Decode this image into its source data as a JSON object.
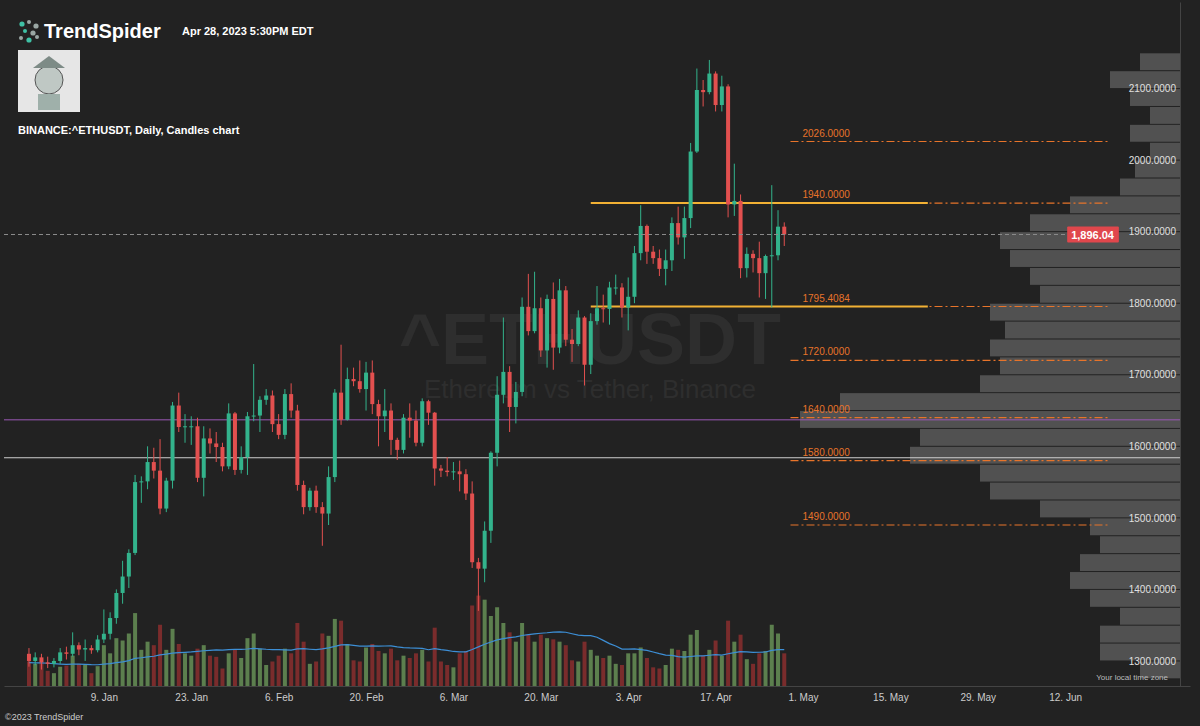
{
  "page": {
    "brand": "TrendSpider",
    "timestamp": "Apr 28, 2023 5:30PM EDT",
    "watermark": "^ETHUSDT",
    "watermark_subtitle": "Ethereum vs Tether, Binance",
    "copyright": "©2023 TrendSpider",
    "timezone_note": "Your local time zone"
  },
  "chart_data": {
    "type": "candlestick",
    "title": "BINANCE:^ETHUSDT, Daily, Candles chart",
    "grid": false,
    "x": [
      "2022-12-28",
      "2022-12-29",
      "2022-12-30",
      "2022-12-31",
      "2023-01-01",
      "2023-01-02",
      "2023-01-03",
      "2023-01-04",
      "2023-01-05",
      "2023-01-06",
      "2023-01-07",
      "2023-01-08",
      "2023-01-09",
      "2023-01-10",
      "2023-01-11",
      "2023-01-12",
      "2023-01-13",
      "2023-01-14",
      "2023-01-15",
      "2023-01-16",
      "2023-01-17",
      "2023-01-18",
      "2023-01-19",
      "2023-01-20",
      "2023-01-21",
      "2023-01-22",
      "2023-01-23",
      "2023-01-24",
      "2023-01-25",
      "2023-01-26",
      "2023-01-27",
      "2023-01-28",
      "2023-01-29",
      "2023-01-30",
      "2023-01-31",
      "2023-02-01",
      "2023-02-02",
      "2023-02-03",
      "2023-02-04",
      "2023-02-05",
      "2023-02-06",
      "2023-02-07",
      "2023-02-08",
      "2023-02-09",
      "2023-02-10",
      "2023-02-11",
      "2023-02-12",
      "2023-02-13",
      "2023-02-14",
      "2023-02-15",
      "2023-02-16",
      "2023-02-17",
      "2023-02-18",
      "2023-02-19",
      "2023-02-20",
      "2023-02-21",
      "2023-02-22",
      "2023-02-23",
      "2023-02-24",
      "2023-02-25",
      "2023-02-26",
      "2023-02-27",
      "2023-02-28",
      "2023-03-01",
      "2023-03-02",
      "2023-03-03",
      "2023-03-04",
      "2023-03-05",
      "2023-03-06",
      "2023-03-07",
      "2023-03-08",
      "2023-03-09",
      "2023-03-10",
      "2023-03-11",
      "2023-03-12",
      "2023-03-13",
      "2023-03-14",
      "2023-03-15",
      "2023-03-16",
      "2023-03-17",
      "2023-03-18",
      "2023-03-19",
      "2023-03-20",
      "2023-03-21",
      "2023-03-22",
      "2023-03-23",
      "2023-03-24",
      "2023-03-25",
      "2023-03-26",
      "2023-03-27",
      "2023-03-28",
      "2023-03-29",
      "2023-03-30",
      "2023-03-31",
      "2023-04-01",
      "2023-04-02",
      "2023-04-03",
      "2023-04-04",
      "2023-04-05",
      "2023-04-06",
      "2023-04-07",
      "2023-04-08",
      "2023-04-09",
      "2023-04-10",
      "2023-04-11",
      "2023-04-12",
      "2023-04-13",
      "2023-04-14",
      "2023-04-15",
      "2023-04-16",
      "2023-04-17",
      "2023-04-18",
      "2023-04-19",
      "2023-04-20",
      "2023-04-21",
      "2023-04-22",
      "2023-04-23",
      "2023-04-24",
      "2023-04-25",
      "2023-04-26",
      "2023-04-27",
      "2023-04-28"
    ],
    "open": [
      1310,
      1300,
      1305,
      1298,
      1296,
      1300,
      1312,
      1310,
      1322,
      1316,
      1318,
      1315,
      1330,
      1338,
      1360,
      1395,
      1418,
      1451,
      1550,
      1551,
      1578,
      1566,
      1513,
      1552,
      1657,
      1627,
      1628,
      1628,
      1556,
      1611,
      1604,
      1599,
      1572,
      1646,
      1567,
      1585,
      1642,
      1643,
      1665,
      1671,
      1631,
      1616,
      1673,
      1650,
      1546,
      1515,
      1538,
      1515,
      1506,
      1557,
      1675,
      1637,
      1694,
      1691,
      1680,
      1703,
      1659,
      1642,
      1650,
      1609,
      1595,
      1640,
      1636,
      1605,
      1663,
      1647,
      1569,
      1566,
      1564,
      1565,
      1561,
      1534,
      1438,
      1429,
      1482,
      1591,
      1672,
      1704,
      1655,
      1676,
      1795,
      1761,
      1793,
      1734,
      1806,
      1738,
      1818,
      1749,
      1743,
      1780,
      1714,
      1775,
      1793,
      1792,
      1822,
      1822,
      1794,
      1809,
      1870,
      1908,
      1872,
      1863,
      1848,
      1860,
      1912,
      1892,
      1919,
      2012,
      2098,
      2095,
      2121,
      2077,
      2103,
      1938,
      1943,
      1849,
      1869,
      1863,
      1842,
      1866,
      1867,
      1907
    ],
    "high": [
      1318,
      1312,
      1310,
      1306,
      1304,
      1318,
      1320,
      1340,
      1326,
      1330,
      1322,
      1336,
      1372,
      1368,
      1400,
      1440,
      1456,
      1560,
      1558,
      1600,
      1598,
      1610,
      1556,
      1662,
      1675,
      1645,
      1642,
      1640,
      1628,
      1625,
      1620,
      1605,
      1660,
      1648,
      1600,
      1648,
      1715,
      1670,
      1680,
      1678,
      1645,
      1680,
      1688,
      1658,
      1552,
      1542,
      1545,
      1522,
      1572,
      1680,
      1742,
      1710,
      1710,
      1720,
      1718,
      1720,
      1665,
      1680,
      1660,
      1612,
      1645,
      1660,
      1650,
      1667,
      1665,
      1648,
      1574,
      1585,
      1578,
      1580,
      1568,
      1551,
      1444,
      1495,
      1593,
      1698,
      1780,
      1712,
      1690,
      1808,
      1841,
      1844,
      1808,
      1812,
      1829,
      1834,
      1824,
      1764,
      1790,
      1782,
      1786,
      1824,
      1812,
      1830,
      1840,
      1828,
      1836,
      1880,
      1937,
      1910,
      1880,
      1875,
      1875,
      1920,
      1935,
      1935,
      2024,
      2128,
      2112,
      2140,
      2124,
      2118,
      2106,
      1995,
      1952,
      1878,
      1874,
      1886,
      1868,
      1965,
      1930,
      1913
    ],
    "low": [
      1292,
      1294,
      1288,
      1290,
      1291,
      1296,
      1302,
      1306,
      1308,
      1300,
      1310,
      1312,
      1325,
      1330,
      1352,
      1380,
      1402,
      1448,
      1521,
      1540,
      1555,
      1505,
      1508,
      1541,
      1620,
      1605,
      1602,
      1550,
      1530,
      1590,
      1578,
      1565,
      1568,
      1560,
      1562,
      1560,
      1635,
      1620,
      1658,
      1620,
      1610,
      1610,
      1640,
      1538,
      1505,
      1510,
      1507,
      1461,
      1490,
      1550,
      1630,
      1636,
      1684,
      1675,
      1650,
      1645,
      1600,
      1620,
      1588,
      1581,
      1590,
      1612,
      1600,
      1600,
      1630,
      1545,
      1557,
      1558,
      1553,
      1537,
      1525,
      1430,
      1370,
      1410,
      1465,
      1572,
      1660,
      1620,
      1632,
      1670,
      1755,
      1758,
      1725,
      1710,
      1707,
      1730,
      1740,
      1718,
      1740,
      1685,
      1701,
      1770,
      1773,
      1770,
      1812,
      1780,
      1762,
      1800,
      1860,
      1855,
      1855,
      1838,
      1825,
      1845,
      1882,
      1862,
      1905,
      2010,
      2075,
      2092,
      2068,
      2068,
      1920,
      1922,
      1835,
      1836,
      1843,
      1808,
      1806,
      1794,
      1860,
      1880
    ],
    "close": [
      1300,
      1305,
      1298,
      1296,
      1300,
      1312,
      1310,
      1322,
      1316,
      1318,
      1315,
      1330,
      1338,
      1360,
      1395,
      1418,
      1451,
      1550,
      1551,
      1578,
      1566,
      1513,
      1552,
      1657,
      1627,
      1628,
      1628,
      1556,
      1611,
      1604,
      1599,
      1572,
      1646,
      1567,
      1585,
      1642,
      1643,
      1665,
      1671,
      1631,
      1616,
      1673,
      1650,
      1546,
      1515,
      1538,
      1515,
      1506,
      1557,
      1675,
      1637,
      1694,
      1691,
      1680,
      1703,
      1659,
      1642,
      1650,
      1609,
      1595,
      1640,
      1636,
      1605,
      1663,
      1647,
      1569,
      1566,
      1564,
      1565,
      1561,
      1534,
      1438,
      1429,
      1482,
      1591,
      1672,
      1704,
      1655,
      1676,
      1795,
      1761,
      1793,
      1734,
      1806,
      1738,
      1818,
      1749,
      1743,
      1780,
      1714,
      1775,
      1793,
      1792,
      1822,
      1822,
      1794,
      1809,
      1870,
      1908,
      1872,
      1863,
      1848,
      1860,
      1912,
      1892,
      1919,
      2012,
      2098,
      2095,
      2121,
      2077,
      2103,
      1938,
      1943,
      1849,
      1869,
      1863,
      1842,
      1866,
      1867,
      1907,
      1896.04
    ],
    "volume": [
      420,
      380,
      400,
      260,
      220,
      330,
      350,
      520,
      380,
      360,
      220,
      340,
      700,
      560,
      820,
      780,
      900,
      1250,
      620,
      760,
      700,
      1050,
      620,
      980,
      720,
      560,
      520,
      640,
      700,
      520,
      500,
      300,
      560,
      620,
      480,
      820,
      900,
      640,
      360,
      420,
      520,
      640,
      560,
      1080,
      760,
      380,
      420,
      900,
      860,
      1150,
      1120,
      720,
      440,
      420,
      660,
      720,
      600,
      560,
      640,
      440,
      520,
      480,
      560,
      620,
      420,
      1000,
      420,
      360,
      320,
      560,
      600,
      1380,
      1550,
      1480,
      1200,
      1350,
      1080,
      920,
      760,
      1080,
      880,
      760,
      880,
      820,
      800,
      760,
      700,
      440,
      420,
      760,
      620,
      520,
      480,
      520,
      380,
      360,
      560,
      560,
      660,
      480,
      320,
      300,
      360,
      640,
      620,
      600,
      880,
      960,
      520,
      620,
      780,
      520,
      1120,
      760,
      880,
      460,
      380,
      560,
      600,
      1050,
      900,
      560
    ],
    "volume_ma": [
      400,
      398,
      396,
      390,
      382,
      376,
      372,
      375,
      374,
      372,
      366,
      364,
      375,
      383,
      400,
      415,
      436,
      475,
      484,
      498,
      510,
      534,
      545,
      563,
      572,
      578,
      584,
      593,
      604,
      611,
      619,
      616,
      622,
      628,
      627,
      634,
      645,
      638,
      630,
      625,
      622,
      620,
      614,
      636,
      640,
      630,
      622,
      636,
      654,
      680,
      705,
      709,
      697,
      684,
      684,
      688,
      685,
      686,
      688,
      671,
      659,
      652,
      649,
      646,
      622,
      640,
      623,
      610,
      592,
      584,
      586,
      626,
      670,
      716,
      755,
      790,
      812,
      830,
      842,
      866,
      882,
      892,
      904,
      913,
      925,
      928,
      921,
      896,
      871,
      862,
      862,
      836,
      782,
      726,
      685,
      633,
      633,
      637,
      624,
      611,
      583,
      554,
      528,
      526,
      505,
      496,
      506,
      518,
      517,
      527,
      537,
      529,
      553,
      573,
      590,
      584,
      577,
      579,
      583,
      610,
      625,
      622
    ],
    "volume_lim": [
      0,
      2400
    ],
    "xlim": [
      "2022-12-24",
      "2023-07-02"
    ],
    "xticks": [
      {
        "value": "2023-01-09",
        "label": "9. Jan"
      },
      {
        "value": "2023-01-23",
        "label": "23. Jan"
      },
      {
        "value": "2023-02-06",
        "label": "6. Feb"
      },
      {
        "value": "2023-02-20",
        "label": "20. Feb"
      },
      {
        "value": "2023-03-06",
        "label": "6. Mar"
      },
      {
        "value": "2023-03-20",
        "label": "20. Mar"
      },
      {
        "value": "2023-04-03",
        "label": "3. Apr"
      },
      {
        "value": "2023-04-17",
        "label": "17. Apr"
      },
      {
        "value": "2023-05-01",
        "label": "1. May"
      },
      {
        "value": "2023-05-15",
        "label": "15. May"
      },
      {
        "value": "2023-05-29",
        "label": "29. May"
      },
      {
        "value": "2023-06-12",
        "label": "12. Jun"
      }
    ],
    "ylim": [
      1265,
      2221
    ],
    "yticks": [
      {
        "value": 1300,
        "label": "1300.0000"
      },
      {
        "value": 1400,
        "label": "1400.0000"
      },
      {
        "value": 1500,
        "label": "1500.0000"
      },
      {
        "value": 1600,
        "label": "1600.0000"
      },
      {
        "value": 1700,
        "label": "1700.0000"
      },
      {
        "value": 1800,
        "label": "1800.0000"
      },
      {
        "value": 1900,
        "label": "1900.0000"
      },
      {
        "value": 2000,
        "label": "2000.0000"
      },
      {
        "value": 2100,
        "label": "2100.0000"
      }
    ],
    "last_price": {
      "value": 1896.04,
      "label": "1,896.04",
      "color": "#e0474c",
      "line_style": "dashed"
    },
    "levels": [
      {
        "value": 2026,
        "label": "2026.0000",
        "start": "2023-04-29",
        "end": "2023-06-19",
        "color": "#e8742a",
        "line_style": "dashdot"
      },
      {
        "value": 1940,
        "label": "1940.0000",
        "start": "2023-04-29",
        "end": "2023-06-19",
        "color": "#e8742a",
        "line_style": "dashdot"
      },
      {
        "value": 1795.4084,
        "label": "1795.4084",
        "start": "2023-04-29",
        "end": "2023-06-19",
        "color": "#e8742a",
        "line_style": "dashdot"
      },
      {
        "value": 1720,
        "label": "1720.0000",
        "start": "2023-04-29",
        "end": "2023-06-19",
        "color": "#e8742a",
        "line_style": "dashdot"
      },
      {
        "value": 1640,
        "label": "1640.0000",
        "start": "2023-04-29",
        "end": "2023-06-19",
        "color": "#e8742a",
        "line_style": "dashdot"
      },
      {
        "value": 1580,
        "label": "1580.0000",
        "start": "2023-04-29",
        "end": "2023-06-19",
        "color": "#e8742a",
        "line_style": "dashdot"
      },
      {
        "value": 1490,
        "label": "1490.0000",
        "start": "2023-04-29",
        "end": "2023-06-19",
        "color": "#e8742a",
        "line_style": "dashdot"
      }
    ],
    "key_levels": [
      {
        "value": 1940,
        "start": "2023-03-28",
        "end": "2023-05-21",
        "color": "#f2b134",
        "line_style": "solid"
      },
      {
        "value": 1795.4084,
        "start": "2023-03-28",
        "end": "2023-05-21",
        "color": "#f2b134",
        "line_style": "solid"
      }
    ],
    "horizontal_lines": [
      {
        "value": 1637,
        "color": "#9b59b6",
        "line_style": "solid"
      },
      {
        "value": 1584,
        "color": "#cfcfcf",
        "line_style": "solid"
      }
    ],
    "volume_profile": {
      "bins": [
        1275,
        1300,
        1325,
        1350,
        1375,
        1400,
        1425,
        1450,
        1475,
        1500,
        1525,
        1550,
        1575,
        1600,
        1625,
        1650,
        1675,
        1700,
        1725,
        1750,
        1775,
        1800,
        1825,
        1850,
        1875,
        1900,
        1925,
        1950,
        1975,
        2000,
        2025,
        2050,
        2075,
        2100,
        2125,
        2150
      ],
      "values": [
        1600,
        3200,
        3200,
        2400,
        3600,
        4400,
        4000,
        3200,
        3600,
        5600,
        7600,
        8000,
        10800,
        10400,
        15200,
        13600,
        8000,
        7200,
        7600,
        7000,
        7600,
        5600,
        6000,
        6800,
        7200,
        6000,
        4400,
        2400,
        1800,
        1200,
        2000,
        1200,
        2000,
        2800,
        1600
      ],
      "lim": [
        0,
        20000
      ]
    }
  }
}
